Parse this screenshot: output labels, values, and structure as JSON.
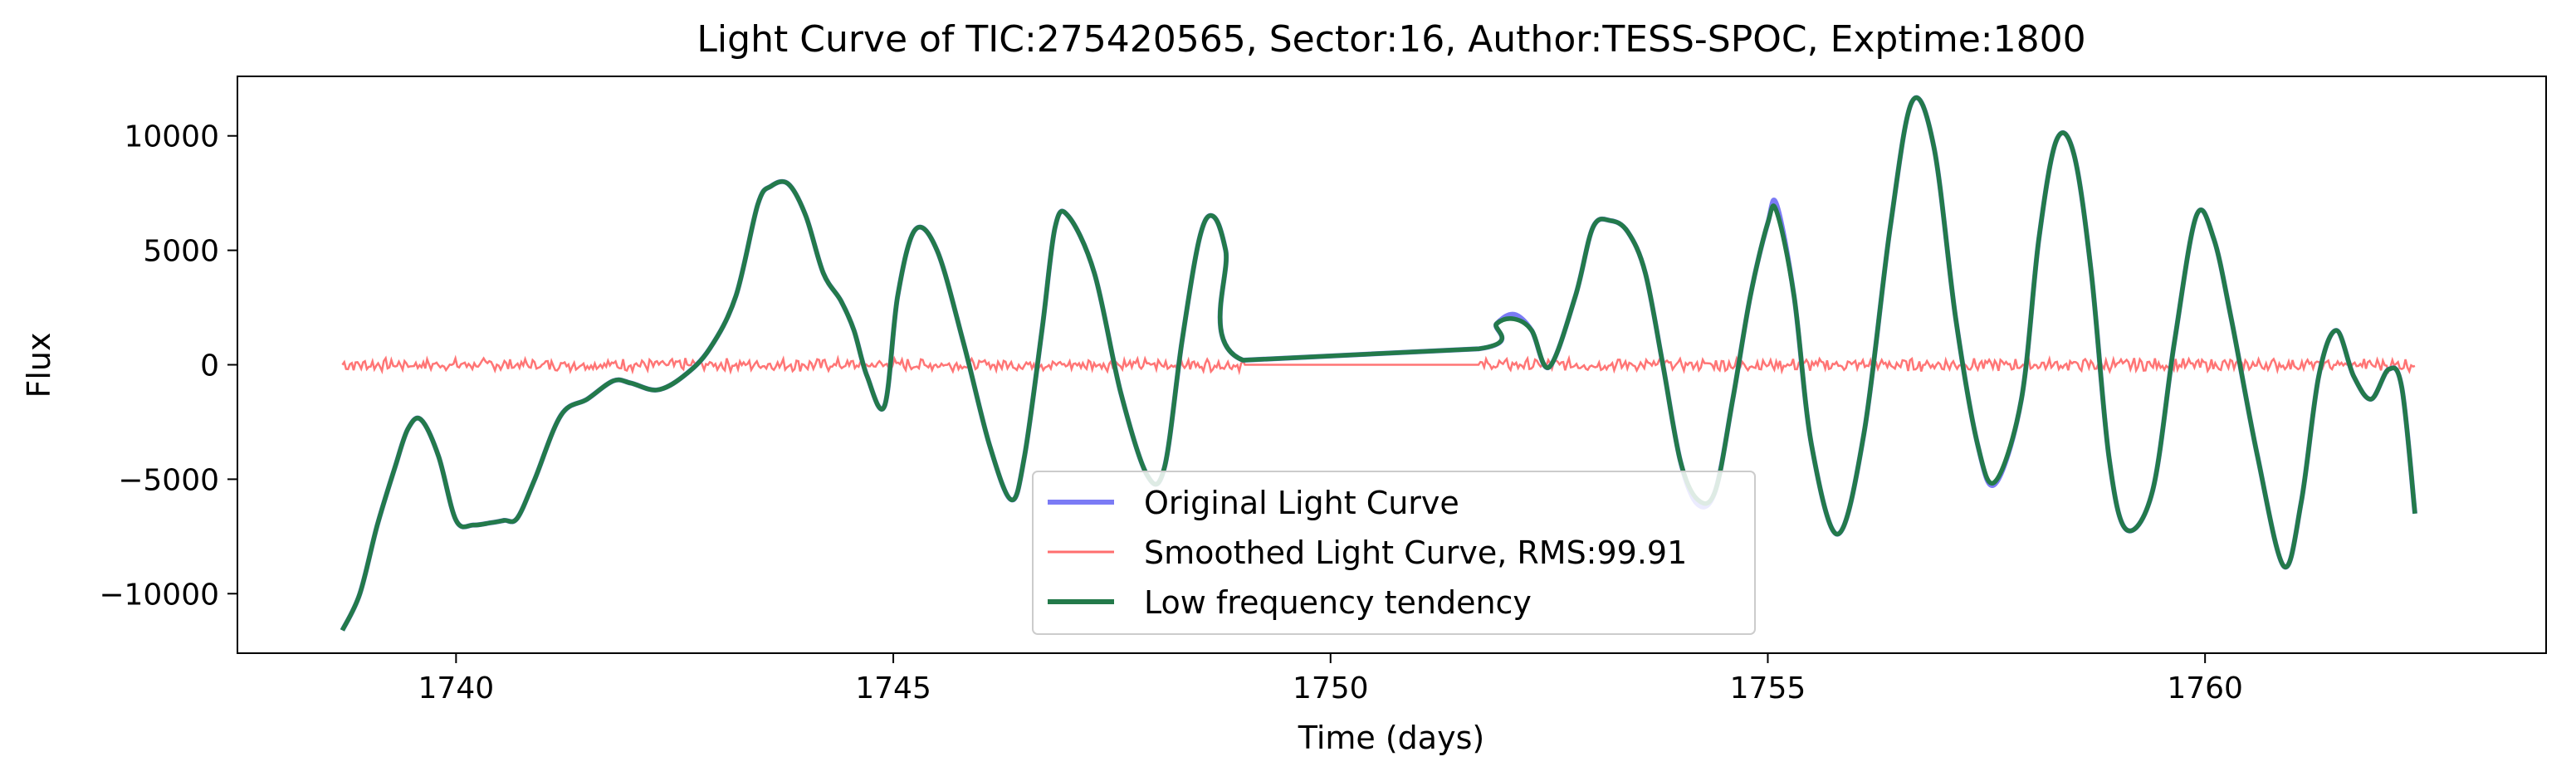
{
  "chart_data": {
    "type": "line",
    "title": "Light Curve of TIC:275420565, Sector:16, Author:TESS-SPOC, Exptime:1800",
    "xlabel": "Time (days)",
    "ylabel": "Flux",
    "xlim": [
      1737.5,
      1763.9
    ],
    "ylim": [
      -12600,
      12600
    ],
    "xticks": [
      1740,
      1745,
      1750,
      1755,
      1760
    ],
    "xtick_labels": [
      "1740",
      "1745",
      "1750",
      "1755",
      "1760"
    ],
    "yticks": [
      10000,
      5000,
      0,
      -5000,
      -10000
    ],
    "ytick_labels": [
      "10000",
      "5000",
      "0",
      "−5000",
      "−10000"
    ],
    "grid": false,
    "legend_position": "lower-center",
    "series": [
      {
        "name": "Original Light Curve",
        "color": "#7b7bf5",
        "x": [
          1738.7,
          1738.9,
          1739.1,
          1739.3,
          1739.45,
          1739.6,
          1739.8,
          1740.0,
          1740.2,
          1740.4,
          1740.55,
          1740.7,
          1740.9,
          1741.2,
          1741.5,
          1741.8,
          1742.0,
          1742.3,
          1742.6,
          1742.9,
          1743.2,
          1743.45,
          1743.6,
          1743.8,
          1744.0,
          1744.2,
          1744.4,
          1744.55,
          1744.7,
          1744.9,
          1745.05,
          1745.25,
          1745.5,
          1745.8,
          1746.1,
          1746.35,
          1746.5,
          1746.7,
          1746.85,
          1747.0,
          1747.3,
          1747.6,
          1747.9,
          1748.1,
          1748.3,
          1748.5,
          1748.65,
          1748.8,
          1749.0,
          1751.7,
          1751.9,
          1752.1,
          1752.3,
          1752.5,
          1752.8,
          1753.0,
          1753.2,
          1753.4,
          1753.6,
          1753.8,
          1754.0,
          1754.2,
          1754.4,
          1754.6,
          1754.8,
          1755.0,
          1755.1,
          1755.3,
          1755.5,
          1755.8,
          1756.1,
          1756.4,
          1756.65,
          1756.9,
          1757.15,
          1757.4,
          1757.6,
          1757.9,
          1758.1,
          1758.3,
          1758.5,
          1758.7,
          1758.9,
          1759.1,
          1759.4,
          1759.65,
          1759.9,
          1760.1,
          1760.3,
          1760.6,
          1760.9,
          1761.1,
          1761.3,
          1761.5,
          1761.7,
          1761.9,
          1762.1,
          1762.25,
          1762.4
        ],
        "y": [
          -11600,
          -10000,
          -7000,
          -4500,
          -2800,
          -2400,
          -4000,
          -6800,
          -7000,
          -6900,
          -6800,
          -6700,
          -5000,
          -2200,
          -1500,
          -700,
          -800,
          -1100,
          -500,
          700,
          3000,
          7000,
          7800,
          7900,
          6500,
          4000,
          2800,
          1500,
          -500,
          -1800,
          3000,
          5900,
          5000,
          1000,
          -3500,
          -5900,
          -4000,
          1500,
          6000,
          6500,
          4000,
          -1200,
          -4800,
          -4500,
          1000,
          5500,
          6500,
          5000,
          200,
          700,
          1800,
          2200,
          1500,
          -100,
          3000,
          6000,
          6300,
          5800,
          4000,
          0,
          -4200,
          -6100,
          -5500,
          -1500,
          3000,
          6200,
          7000,
          3000,
          -3500,
          -7400,
          -3000,
          6000,
          11500,
          9500,
          2000,
          -3500,
          -5200,
          -1500,
          5500,
          9800,
          9200,
          4000,
          -4000,
          -7200,
          -5500,
          1000,
          6500,
          5500,
          2000,
          -4000,
          -8800,
          -6000,
          -500,
          1500,
          -500,
          -1500,
          -200,
          -1000,
          -6500
        ]
      },
      {
        "name": "Smoothed Light Curve, RMS:99.91",
        "color": "#ff6e6e",
        "x": [
          1738.7,
          1762.4
        ],
        "y": [
          0,
          0
        ]
      },
      {
        "name": "Low frequency tendency",
        "color": "#237a4a",
        "x": [
          1738.7,
          1738.9,
          1739.1,
          1739.3,
          1739.45,
          1739.6,
          1739.8,
          1740.0,
          1740.2,
          1740.4,
          1740.55,
          1740.7,
          1740.9,
          1741.2,
          1741.5,
          1741.8,
          1742.0,
          1742.3,
          1742.6,
          1742.9,
          1743.2,
          1743.45,
          1743.6,
          1743.8,
          1744.0,
          1744.2,
          1744.4,
          1744.55,
          1744.7,
          1744.9,
          1745.05,
          1745.25,
          1745.5,
          1745.8,
          1746.1,
          1746.35,
          1746.5,
          1746.7,
          1746.85,
          1747.0,
          1747.3,
          1747.6,
          1747.9,
          1748.1,
          1748.3,
          1748.5,
          1748.65,
          1748.8,
          1749.0,
          1751.7,
          1751.9,
          1752.1,
          1752.3,
          1752.5,
          1752.8,
          1753.0,
          1753.2,
          1753.4,
          1753.6,
          1753.8,
          1754.0,
          1754.2,
          1754.4,
          1754.6,
          1754.8,
          1755.0,
          1755.1,
          1755.3,
          1755.5,
          1755.8,
          1756.1,
          1756.4,
          1756.65,
          1756.9,
          1757.15,
          1757.4,
          1757.6,
          1757.9,
          1758.1,
          1758.3,
          1758.5,
          1758.7,
          1758.9,
          1759.1,
          1759.4,
          1759.65,
          1759.9,
          1760.1,
          1760.3,
          1760.6,
          1760.9,
          1761.1,
          1761.3,
          1761.5,
          1761.7,
          1761.9,
          1762.1,
          1762.25,
          1762.4
        ],
        "y": [
          -11600,
          -10000,
          -7000,
          -4500,
          -2800,
          -2400,
          -4000,
          -6800,
          -7000,
          -6900,
          -6800,
          -6700,
          -5000,
          -2200,
          -1500,
          -700,
          -800,
          -1100,
          -500,
          700,
          3000,
          7000,
          7800,
          7900,
          6500,
          4000,
          2800,
          1500,
          -500,
          -1800,
          3000,
          5900,
          5000,
          1000,
          -3500,
          -5900,
          -4000,
          1500,
          6000,
          6500,
          4000,
          -1200,
          -4800,
          -4500,
          1000,
          5500,
          6500,
          5000,
          200,
          700,
          1800,
          2000,
          1500,
          -100,
          3000,
          6000,
          6300,
          5800,
          4000,
          0,
          -4200,
          -5900,
          -5500,
          -1500,
          3000,
          6200,
          6700,
          3000,
          -3500,
          -7400,
          -3000,
          6000,
          11500,
          9500,
          2000,
          -3500,
          -5100,
          -1500,
          5500,
          9800,
          9200,
          4000,
          -4000,
          -7200,
          -5500,
          1000,
          6500,
          5500,
          2000,
          -4000,
          -8800,
          -6000,
          -500,
          1500,
          -500,
          -1500,
          -200,
          -1000,
          -6500
        ]
      }
    ]
  }
}
